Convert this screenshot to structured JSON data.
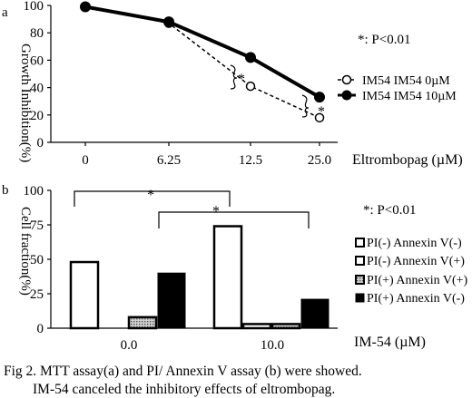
{
  "panel_a": {
    "letter": "a",
    "p_note": "*: P<0.01",
    "star_between": "*",
    "star_right": "*"
  },
  "panel_b": {
    "letter": "b",
    "p_note": "*: P<0.01",
    "sig_left": "*",
    "sig_right": "*"
  },
  "caption": {
    "line1": "Fig 2. MTT assay(a) and PI/ Annexin V assay (b) were showed.",
    "line2": "IM-54 canceled the inhibitory effects of eltrombopag."
  },
  "colors": {
    "ink": "#000000",
    "white": "#ffffff",
    "gray_pattern": "#9a9a9a"
  },
  "chart_data": [
    {
      "type": "line",
      "title": "",
      "xlabel": "Eltrombopag (µM)",
      "ylabel": "Growth Inhibition(%)",
      "x": [
        "0",
        "6.25",
        "12.5",
        "25.0"
      ],
      "ylim": [
        0,
        100
      ],
      "yticks": [
        "0",
        "20",
        "40",
        "60",
        "80",
        "100"
      ],
      "grid": false,
      "legend_position": "right",
      "series": [
        {
          "name": "IM54 IM54 0µM",
          "values": [
            99,
            87,
            41,
            18
          ],
          "style": "dashed-open-circle"
        },
        {
          "name": "IM54 IM54 10µM",
          "values": [
            99,
            88,
            62,
            33
          ],
          "style": "solid-filled-circle"
        }
      ]
    },
    {
      "type": "bar",
      "title": "",
      "xlabel": "IM-54 (µM)",
      "ylabel": "Cell fraction(%)",
      "categories": [
        "0.0",
        "10.0"
      ],
      "ylim": [
        0,
        100
      ],
      "yticks": [
        "0",
        "25",
        "50",
        "75",
        "100"
      ],
      "grid": false,
      "legend_position": "right",
      "series": [
        {
          "name": "PI(-) Annexin V(-)",
          "values": [
            48,
            74
          ],
          "fill": "white"
        },
        {
          "name": "PI(-) Annexin V(+)",
          "values": [
            0,
            3
          ],
          "fill": "white"
        },
        {
          "name": "PI(+) Annexin V(+)",
          "values": [
            8,
            3
          ],
          "fill": "pattern"
        },
        {
          "name": "PI(+) Annexin V(-)",
          "values": [
            40,
            21
          ],
          "fill": "black"
        }
      ]
    }
  ]
}
